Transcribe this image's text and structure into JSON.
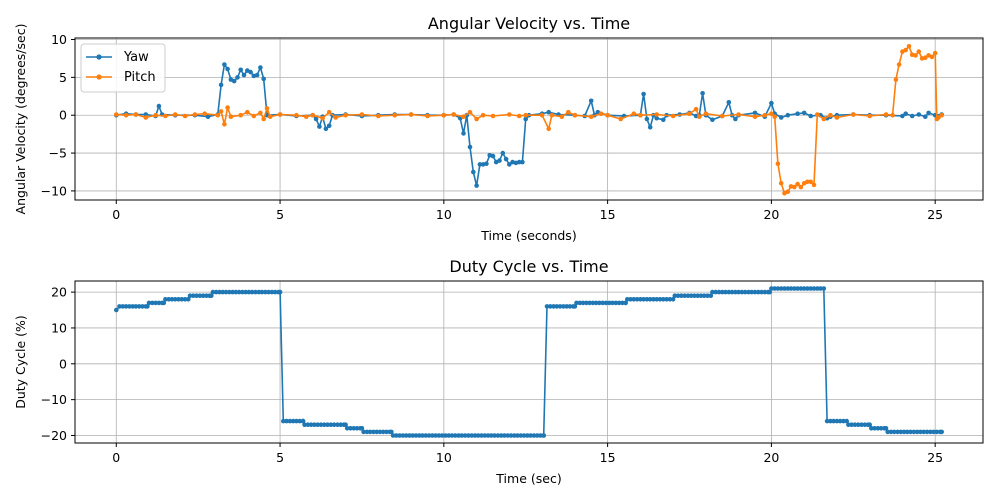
{
  "chart_data": [
    {
      "type": "line",
      "title": "Angular Velocity vs. Time",
      "xlabel": "Time (seconds)",
      "ylabel": "Angular Velocity (degrees/sec)",
      "xlim": [
        -1.26,
        26.46
      ],
      "ylim": [
        -11.2,
        10.2
      ],
      "xticks": [
        0,
        5,
        10,
        15,
        20,
        25
      ],
      "yticks": [
        -10,
        -5,
        0,
        5,
        10
      ],
      "grid": true,
      "legend": "top-left",
      "series": [
        {
          "name": "Yaw",
          "color": "#1f77b4",
          "points": [
            [
              0,
              0
            ],
            [
              0.3,
              0.2
            ],
            [
              0.6,
              0.1
            ],
            [
              0.9,
              0.1
            ],
            [
              1.2,
              -0.1
            ],
            [
              1.3,
              1.2
            ],
            [
              1.4,
              0.1
            ],
            [
              1.8,
              0
            ],
            [
              2.4,
              0
            ],
            [
              2.8,
              -0.2
            ],
            [
              3.1,
              0.1
            ],
            [
              3.2,
              4
            ],
            [
              3.3,
              6.7
            ],
            [
              3.4,
              6.1
            ],
            [
              3.5,
              4.7
            ],
            [
              3.6,
              4.5
            ],
            [
              3.7,
              5
            ],
            [
              3.8,
              6
            ],
            [
              3.9,
              5.3
            ],
            [
              4.0,
              5.9
            ],
            [
              4.1,
              5.7
            ],
            [
              4.2,
              5.2
            ],
            [
              4.3,
              5.3
            ],
            [
              4.4,
              6.3
            ],
            [
              4.5,
              4.8
            ],
            [
              4.6,
              0
            ],
            [
              5.0,
              0.1
            ],
            [
              5.5,
              -0.1
            ],
            [
              6.0,
              0
            ],
            [
              6.1,
              -0.5
            ],
            [
              6.2,
              -1.5
            ],
            [
              6.3,
              -0.2
            ],
            [
              6.4,
              -1.8
            ],
            [
              6.5,
              -1.4
            ],
            [
              6.6,
              0
            ],
            [
              7.0,
              0.1
            ],
            [
              7.5,
              -0.1
            ],
            [
              8.0,
              0
            ],
            [
              8.5,
              0.1
            ],
            [
              9.0,
              0.1
            ],
            [
              9.5,
              0
            ],
            [
              10.0,
              0
            ],
            [
              10.3,
              0.1
            ],
            [
              10.5,
              -0.4
            ],
            [
              10.6,
              -2.4
            ],
            [
              10.7,
              0
            ],
            [
              10.8,
              -4.2
            ],
            [
              10.9,
              -7.5
            ],
            [
              11.0,
              -9.3
            ],
            [
              11.1,
              -6.5
            ],
            [
              11.2,
              -6.5
            ],
            [
              11.3,
              -6.4
            ],
            [
              11.4,
              -5.3
            ],
            [
              11.5,
              -5.4
            ],
            [
              11.6,
              -6.2
            ],
            [
              11.7,
              -6
            ],
            [
              11.8,
              -5
            ],
            [
              11.9,
              -5.8
            ],
            [
              12.0,
              -6.5
            ],
            [
              12.1,
              -6.2
            ],
            [
              12.2,
              -6.3
            ],
            [
              12.3,
              -6.2
            ],
            [
              12.4,
              -6.2
            ],
            [
              12.5,
              -0.5
            ],
            [
              12.6,
              0
            ],
            [
              13.0,
              0.2
            ],
            [
              13.2,
              0.4
            ],
            [
              13.5,
              0.1
            ],
            [
              14.0,
              0
            ],
            [
              14.3,
              -0.1
            ],
            [
              14.5,
              1.9
            ],
            [
              14.6,
              0
            ],
            [
              14.7,
              0.4
            ],
            [
              15.0,
              0
            ],
            [
              15.5,
              -0.1
            ],
            [
              16.0,
              0
            ],
            [
              16.1,
              2.8
            ],
            [
              16.2,
              -0.5
            ],
            [
              16.3,
              -1.6
            ],
            [
              16.4,
              0
            ],
            [
              16.5,
              -0.4
            ],
            [
              16.7,
              -0.6
            ],
            [
              16.8,
              0
            ],
            [
              17.2,
              0.1
            ],
            [
              17.5,
              0.3
            ],
            [
              17.7,
              -0.1
            ],
            [
              17.8,
              0
            ],
            [
              17.9,
              2.9
            ],
            [
              18.0,
              0
            ],
            [
              18.2,
              -0.6
            ],
            [
              18.5,
              -0.1
            ],
            [
              18.7,
              1.7
            ],
            [
              18.8,
              0
            ],
            [
              18.9,
              -0.5
            ],
            [
              19.0,
              0
            ],
            [
              19.5,
              0.3
            ],
            [
              19.8,
              -0.2
            ],
            [
              20.0,
              1.6
            ],
            [
              20.1,
              0.2
            ],
            [
              20.3,
              -0.3
            ],
            [
              20.5,
              0
            ],
            [
              20.8,
              0.2
            ],
            [
              21.0,
              0.3
            ],
            [
              21.2,
              -0.1
            ],
            [
              21.5,
              0
            ],
            [
              21.7,
              -0.4
            ],
            [
              21.8,
              -0.2
            ],
            [
              22.0,
              0
            ],
            [
              22.5,
              0.1
            ],
            [
              23.0,
              0
            ],
            [
              23.5,
              0
            ],
            [
              24.0,
              -0.1
            ],
            [
              24.1,
              0.2
            ],
            [
              24.3,
              -0.1
            ],
            [
              24.5,
              0.1
            ],
            [
              24.7,
              -0.2
            ],
            [
              24.8,
              0.3
            ],
            [
              25.0,
              0
            ],
            [
              25.2,
              0.1
            ]
          ]
        },
        {
          "name": "Pitch",
          "color": "#ff7f0e",
          "points": [
            [
              0,
              0.1
            ],
            [
              0.3,
              0
            ],
            [
              0.6,
              0.1
            ],
            [
              0.9,
              -0.3
            ],
            [
              1.2,
              0
            ],
            [
              1.5,
              -0.1
            ],
            [
              1.8,
              0.1
            ],
            [
              2.1,
              -0.1
            ],
            [
              2.4,
              0.1
            ],
            [
              2.7,
              0.2
            ],
            [
              3.1,
              0
            ],
            [
              3.2,
              0.5
            ],
            [
              3.3,
              -1.2
            ],
            [
              3.4,
              1
            ],
            [
              3.5,
              -0.2
            ],
            [
              3.8,
              0
            ],
            [
              4.0,
              0.4
            ],
            [
              4.2,
              -0.1
            ],
            [
              4.4,
              0.3
            ],
            [
              4.5,
              -0.5
            ],
            [
              4.6,
              0.9
            ],
            [
              4.7,
              -0.2
            ],
            [
              5.0,
              0.1
            ],
            [
              5.5,
              0
            ],
            [
              5.8,
              -0.2
            ],
            [
              6.0,
              0
            ],
            [
              6.3,
              -0.4
            ],
            [
              6.5,
              0.4
            ],
            [
              6.7,
              -0.3
            ],
            [
              7.0,
              0
            ],
            [
              7.5,
              0.1
            ],
            [
              8.0,
              -0.1
            ],
            [
              8.5,
              0
            ],
            [
              9.0,
              0.1
            ],
            [
              9.5,
              -0.1
            ],
            [
              10.0,
              0
            ],
            [
              10.3,
              0.1
            ],
            [
              10.6,
              -0.2
            ],
            [
              10.8,
              0.4
            ],
            [
              11.0,
              -0.5
            ],
            [
              11.2,
              0
            ],
            [
              11.5,
              -0.1
            ],
            [
              12.0,
              0.1
            ],
            [
              12.3,
              -0.1
            ],
            [
              12.5,
              0
            ],
            [
              13.0,
              0
            ],
            [
              13.2,
              -1.8
            ],
            [
              13.3,
              0
            ],
            [
              13.6,
              -0.2
            ],
            [
              13.8,
              0.4
            ],
            [
              14.0,
              0
            ],
            [
              14.5,
              -0.2
            ],
            [
              14.8,
              0.2
            ],
            [
              15.0,
              0
            ],
            [
              15.4,
              -0.5
            ],
            [
              15.8,
              0.2
            ],
            [
              16.0,
              0
            ],
            [
              16.5,
              0.1
            ],
            [
              17.0,
              -0.1
            ],
            [
              17.5,
              0.2
            ],
            [
              17.7,
              0.8
            ],
            [
              17.8,
              -0.2
            ],
            [
              18.0,
              0.2
            ],
            [
              18.5,
              -0.1
            ],
            [
              19.0,
              0.1
            ],
            [
              19.5,
              -0.2
            ],
            [
              19.8,
              0
            ],
            [
              20.0,
              0.2
            ],
            [
              20.1,
              -0.2
            ],
            [
              20.2,
              -6.4
            ],
            [
              20.3,
              -9
            ],
            [
              20.4,
              -10.3
            ],
            [
              20.5,
              -10.1
            ],
            [
              20.6,
              -9.4
            ],
            [
              20.7,
              -9.5
            ],
            [
              20.8,
              -9.1
            ],
            [
              20.9,
              -9.5
            ],
            [
              21.0,
              -9
            ],
            [
              21.1,
              -8.8
            ],
            [
              21.2,
              -8.8
            ],
            [
              21.3,
              -9.2
            ],
            [
              21.4,
              0.1
            ],
            [
              21.6,
              -0.5
            ],
            [
              21.8,
              0
            ],
            [
              22.0,
              -0.3
            ],
            [
              22.5,
              0.1
            ],
            [
              23.0,
              -0.1
            ],
            [
              23.5,
              0.1
            ],
            [
              23.7,
              0
            ],
            [
              23.8,
              4.7
            ],
            [
              23.9,
              6.7
            ],
            [
              24.0,
              8.4
            ],
            [
              24.1,
              8.6
            ],
            [
              24.2,
              9.1
            ],
            [
              24.3,
              8
            ],
            [
              24.4,
              7.9
            ],
            [
              24.5,
              8.4
            ],
            [
              24.6,
              7.5
            ],
            [
              24.7,
              7.6
            ],
            [
              24.8,
              7.9
            ],
            [
              24.9,
              7.7
            ],
            [
              25.0,
              8.2
            ],
            [
              25.05,
              -0.5
            ],
            [
              25.1,
              -0.3
            ],
            [
              25.2,
              0
            ]
          ]
        }
      ]
    },
    {
      "type": "line",
      "title": "Duty Cycle vs. Time",
      "xlabel": "Time (sec)",
      "ylabel": "Duty Cycle (%)",
      "xlim": [
        -1.26,
        26.46
      ],
      "ylim": [
        -22.1,
        23.1
      ],
      "xticks": [
        0,
        5,
        10,
        15,
        20,
        25
      ],
      "yticks": [
        -20,
        -10,
        0,
        10,
        20
      ],
      "grid": true,
      "legend": "none",
      "step_segments": [
        [
          0,
          15
        ],
        [
          0.1,
          16
        ],
        [
          0.95,
          16
        ],
        [
          1.0,
          17
        ],
        [
          1.45,
          17
        ],
        [
          1.5,
          18
        ],
        [
          2.2,
          18
        ],
        [
          2.25,
          19
        ],
        [
          2.9,
          19
        ],
        [
          2.95,
          20
        ],
        [
          5.0,
          20
        ],
        [
          5.1,
          -16
        ],
        [
          5.7,
          -16
        ],
        [
          5.75,
          -17
        ],
        [
          7.0,
          -17
        ],
        [
          7.05,
          -18
        ],
        [
          7.5,
          -18
        ],
        [
          7.55,
          -19
        ],
        [
          8.4,
          -19
        ],
        [
          8.45,
          -20
        ],
        [
          13.05,
          -20
        ],
        [
          13.15,
          16
        ],
        [
          14.0,
          16
        ],
        [
          14.05,
          17
        ],
        [
          15.55,
          17
        ],
        [
          15.6,
          18
        ],
        [
          17.0,
          18
        ],
        [
          17.05,
          19
        ],
        [
          18.15,
          19
        ],
        [
          18.2,
          20
        ],
        [
          19.95,
          20
        ],
        [
          20.0,
          21
        ],
        [
          21.6,
          21
        ],
        [
          21.7,
          -16
        ],
        [
          22.3,
          -16
        ],
        [
          22.35,
          -17
        ],
        [
          23.0,
          -17
        ],
        [
          23.05,
          -18
        ],
        [
          23.5,
          -18
        ],
        [
          23.55,
          -19
        ],
        [
          25.2,
          -19
        ]
      ],
      "color": "#1f77b4"
    }
  ]
}
